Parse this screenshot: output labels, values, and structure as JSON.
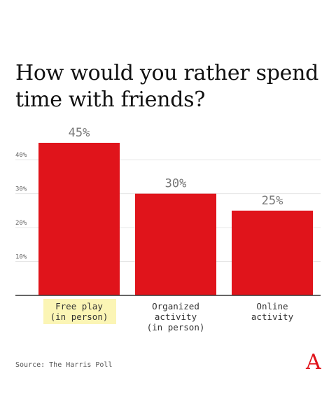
{
  "title": "How would you rather spend time with friends?",
  "source": "Source: The Harris Poll",
  "logo_text": "A",
  "colors": {
    "bar": "#e0141b",
    "highlight": "#fbf5b5",
    "grid": "#e6e6e6",
    "axis": "#333333"
  },
  "chart_data": {
    "type": "bar",
    "categories": [
      [
        "Free play",
        "(in person)"
      ],
      [
        "Organized",
        "activity",
        "(in person)"
      ],
      [
        "Online",
        "activity"
      ]
    ],
    "values": [
      45,
      30,
      25
    ],
    "value_labels": [
      "45%",
      "30%",
      "25%"
    ],
    "highlighted_category": 0,
    "title": "How would you rather spend time with friends?",
    "xlabel": "",
    "ylabel": "",
    "ylim": [
      0,
      50
    ],
    "yticks": [
      10,
      20,
      30,
      40
    ],
    "ytick_labels": [
      "10%",
      "20%",
      "30%",
      "40%"
    ],
    "grid": true
  }
}
